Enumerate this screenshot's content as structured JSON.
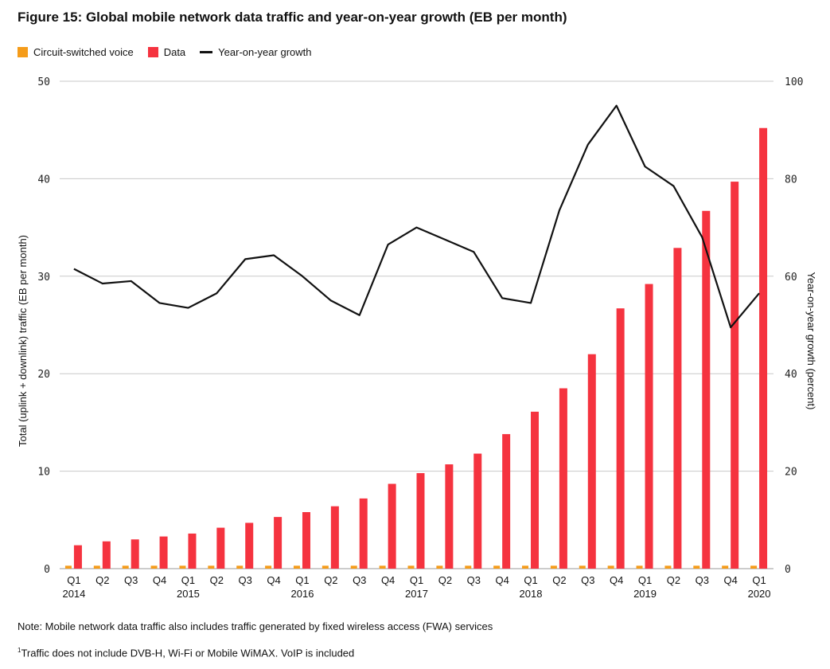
{
  "title": "Figure 15: Global mobile network data traffic and year-on-year growth (EB per month)",
  "legend": [
    {
      "label": "Circuit-switched voice",
      "color": "#f59c1a",
      "kind": "box"
    },
    {
      "label": "Data",
      "color": "#f5333f",
      "kind": "box"
    },
    {
      "label": "Year-on-year growth",
      "color": "#111111",
      "kind": "line"
    }
  ],
  "note": "Note: Mobile network data traffic also includes traffic generated by fixed wireless access (FWA) services",
  "footnote": {
    "marker": "1",
    "text": "Traffic does not include DVB-H, Wi-Fi or Mobile WiMAX. VoIP is included"
  },
  "chart_data": {
    "type": "bar",
    "title": "Figure 15: Global mobile network data traffic and year-on-year growth (EB per month)",
    "ylabel": "Total (uplink + downlink) traffic (EB per month)",
    "y2label": "Year-on-year growth (percent)",
    "ylim": [
      0,
      50
    ],
    "y2lim": [
      0,
      100
    ],
    "yticks": [
      "0",
      "10",
      "20",
      "30",
      "40",
      "50"
    ],
    "y2ticks": [
      "0",
      "20",
      "40",
      "60",
      "80",
      "100"
    ],
    "grid": true,
    "legend_position": "top-left",
    "categories": [
      "Q1",
      "Q2",
      "Q3",
      "Q4",
      "Q1",
      "Q2",
      "Q3",
      "Q4",
      "Q1",
      "Q2",
      "Q3",
      "Q4",
      "Q1",
      "Q2",
      "Q3",
      "Q4",
      "Q1",
      "Q2",
      "Q3",
      "Q4",
      "Q1",
      "Q2",
      "Q3",
      "Q4",
      "Q1"
    ],
    "year_labels": [
      {
        "index": 0,
        "label": "2014"
      },
      {
        "index": 4,
        "label": "2015"
      },
      {
        "index": 8,
        "label": "2016"
      },
      {
        "index": 12,
        "label": "2017"
      },
      {
        "index": 16,
        "label": "2018"
      },
      {
        "index": 20,
        "label": "2019"
      },
      {
        "index": 24,
        "label": "2020"
      }
    ],
    "series": [
      {
        "name": "Circuit-switched voice",
        "type": "bar",
        "axis": "left",
        "color": "#f59c1a",
        "values": [
          0.3,
          0.3,
          0.3,
          0.3,
          0.3,
          0.3,
          0.3,
          0.3,
          0.3,
          0.3,
          0.3,
          0.3,
          0.3,
          0.3,
          0.3,
          0.3,
          0.3,
          0.3,
          0.3,
          0.3,
          0.3,
          0.3,
          0.3,
          0.3,
          0.3
        ]
      },
      {
        "name": "Data",
        "type": "bar",
        "axis": "left",
        "color": "#f5333f",
        "values": [
          2.4,
          2.8,
          3.0,
          3.3,
          3.6,
          4.2,
          4.7,
          5.3,
          5.8,
          6.4,
          7.2,
          8.7,
          9.8,
          10.7,
          11.8,
          13.8,
          16.1,
          18.5,
          22.0,
          26.7,
          29.2,
          32.9,
          36.7,
          39.7,
          45.2
        ]
      },
      {
        "name": "Year-on-year growth",
        "type": "line",
        "axis": "right",
        "color": "#111111",
        "values": [
          61.5,
          58.5,
          59.0,
          54.5,
          53.5,
          56.5,
          63.5,
          64.3,
          60.0,
          55.0,
          52.0,
          66.5,
          70.0,
          67.5,
          65.0,
          55.5,
          54.5,
          73.5,
          87.0,
          95.0,
          82.5,
          78.5,
          68.0,
          49.5,
          56.5
        ]
      }
    ]
  }
}
